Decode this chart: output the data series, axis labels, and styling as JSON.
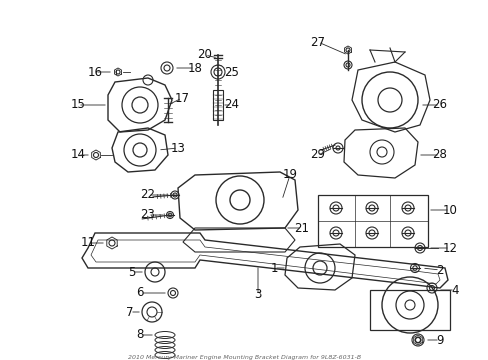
{
  "title": "2010 Mercury Mariner Engine Mounting Bracket Diagram for 9L8Z-6031-B",
  "bg_color": "#ffffff",
  "line_color": "#2a2a2a",
  "text_color": "#111111",
  "figsize": [
    4.89,
    3.6
  ],
  "dpi": 100
}
